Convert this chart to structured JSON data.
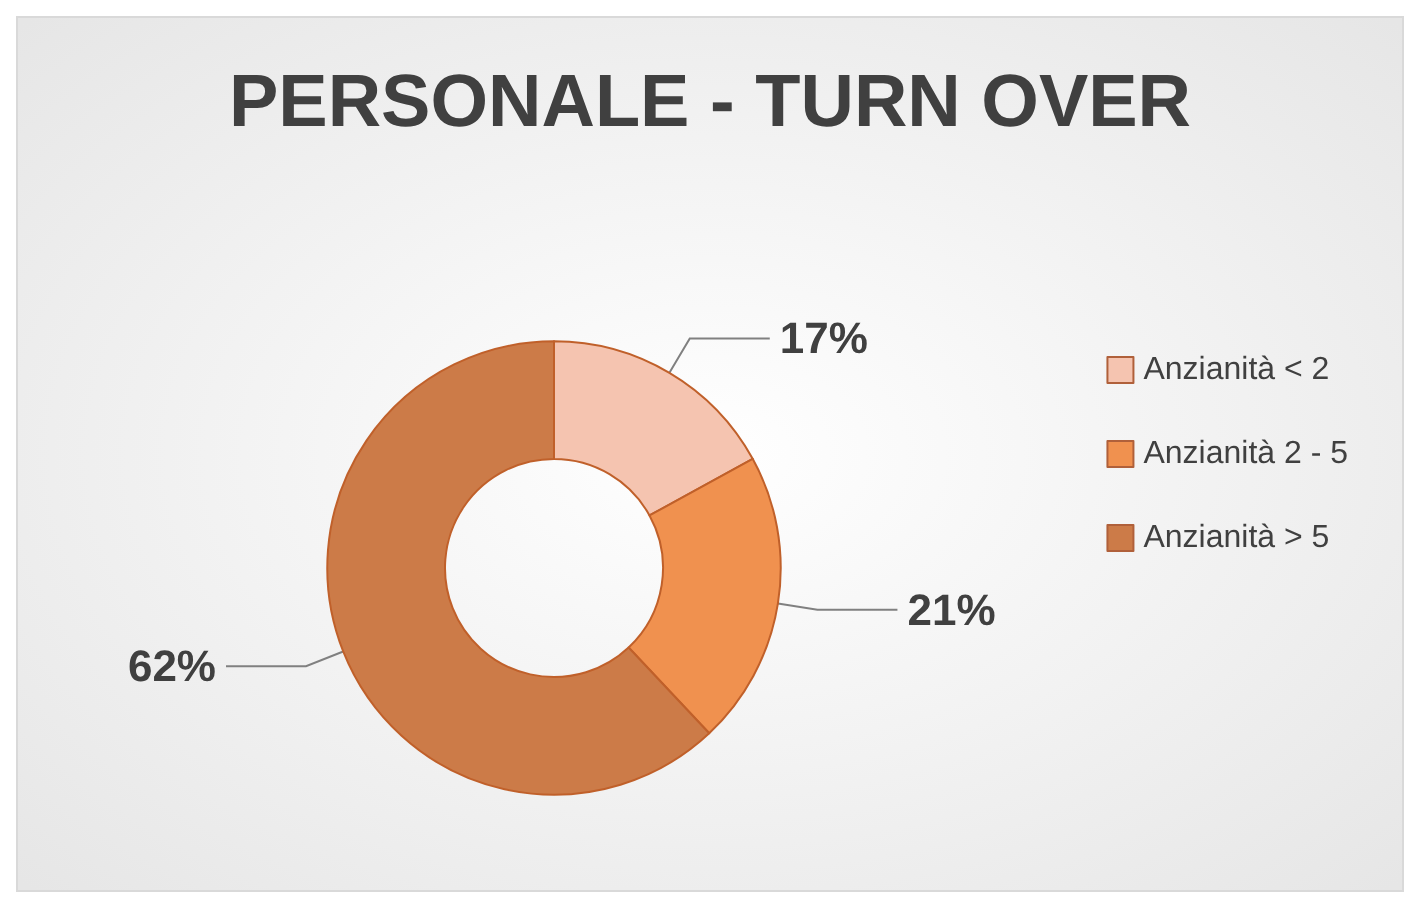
{
  "chart_data": {
    "type": "donut",
    "title": "PERSONALE - TURN OVER",
    "categories": [
      "Anzianità < 2",
      "Anzianità 2 - 5",
      "Anzianità > 5"
    ],
    "values": [
      17,
      21,
      62
    ],
    "colors": [
      "#f5c4b0",
      "#f0914f",
      "#cc7b48"
    ],
    "value_labels": [
      "17%",
      "21%",
      "62%"
    ],
    "legend": "right"
  }
}
